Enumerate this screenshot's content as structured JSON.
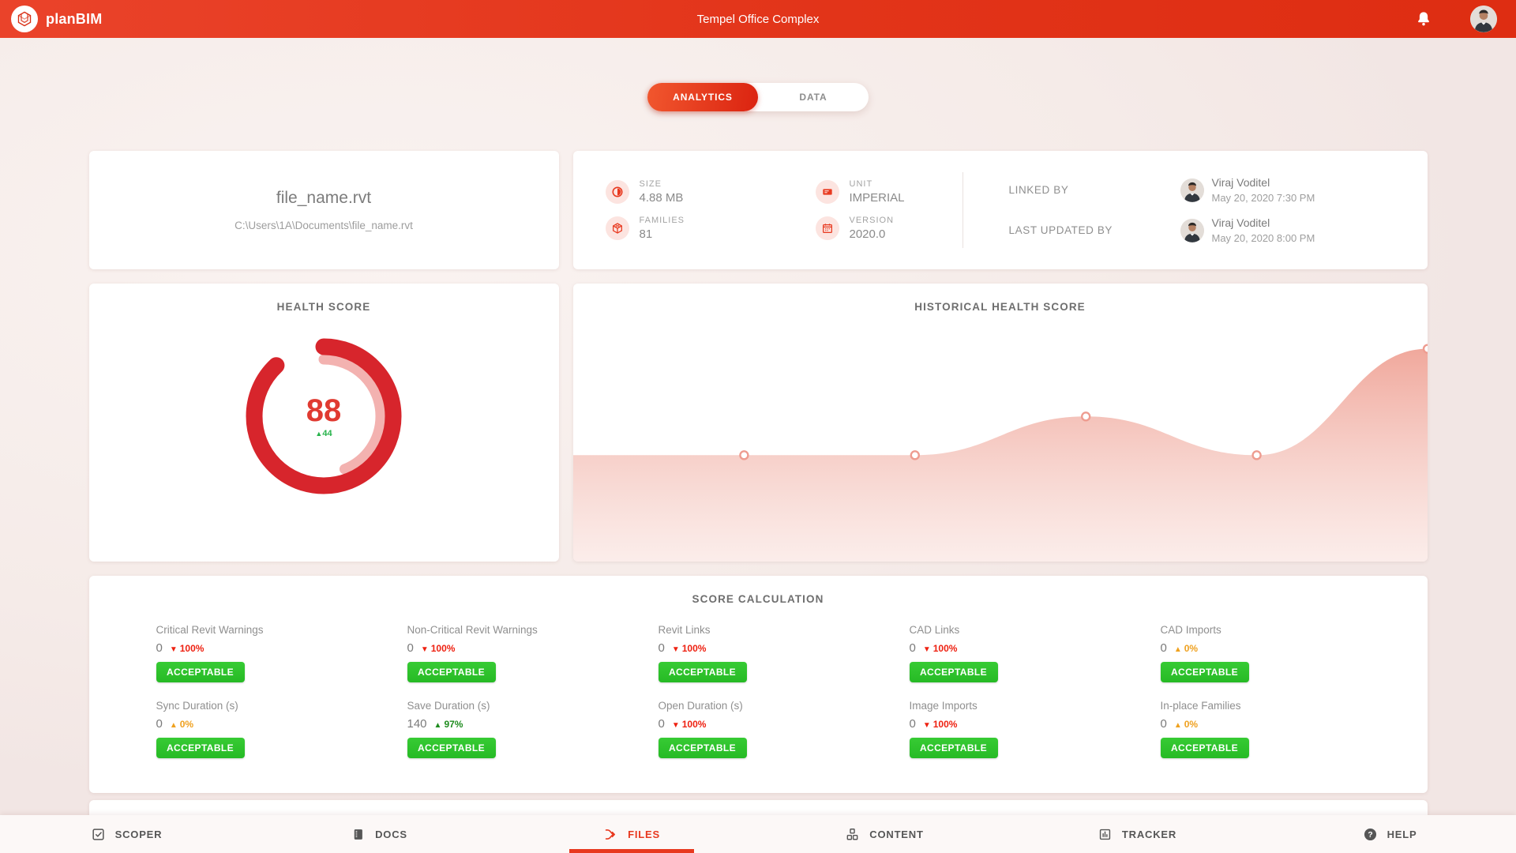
{
  "colors": {
    "accent": "#e8391f",
    "donut_red": "#d7252c",
    "donut_pink": "#f3b2b0",
    "score_red": "#e03a31",
    "green": "#2bc12b",
    "green_dark": "#1f8c1f",
    "orange": "#efa11f",
    "neg_red": "#ee2111",
    "chart_fill_top": "#efa093",
    "chart_fill_bottom": "#f8ded9",
    "chart_marker_ring": "#ee9c90"
  },
  "header": {
    "app_name": "planBIM",
    "project_title": "Tempel Office Complex"
  },
  "tabs": {
    "analytics": "ANALYTICS",
    "data": "DATA"
  },
  "file_card": {
    "name": "file_name.rvt",
    "path": "C:\\Users\\1A\\Documents\\file_name.rvt"
  },
  "meta_card": {
    "items": [
      {
        "label": "SIZE",
        "value": "4.88 MB",
        "icon": "size-icon"
      },
      {
        "label": "UNIT",
        "value": "IMPERIAL",
        "icon": "unit-icon"
      },
      {
        "label": "FAMILIES",
        "value": "81",
        "icon": "families-icon"
      },
      {
        "label": "VERSION",
        "value": "2020.0",
        "icon": "version-icon"
      }
    ],
    "linked_by": {
      "label": "LINKED BY",
      "user": "Viraj Voditel",
      "datetime": "May 20, 2020 7:30 PM"
    },
    "last_updated_by": {
      "label": "LAST UPDATED BY",
      "user": "Viraj Voditel",
      "datetime": "May 20, 2020 8:00 PM"
    }
  },
  "health_score": {
    "title": "HEALTH SCORE",
    "score": "88",
    "delta_arrow": "▲",
    "delta": "44"
  },
  "historical": {
    "title": "HISTORICAL HEALTH SCORE"
  },
  "chart_data": [
    {
      "type": "donut",
      "title": "HEALTH SCORE",
      "value": 88,
      "previous_value": 44,
      "max": 100,
      "delta": 44
    },
    {
      "type": "area",
      "title": "HISTORICAL HEALTH SCORE",
      "x": [
        1,
        2,
        3,
        4,
        5,
        6
      ],
      "values": [
        44,
        44,
        44,
        60,
        44,
        88
      ],
      "ylim": [
        0,
        115
      ],
      "grid": false,
      "legend": false
    }
  ],
  "score_calculation": {
    "title": "SCORE CALCULATION",
    "metrics": [
      {
        "label": "Critical Revit Warnings",
        "value": "0",
        "arrow": "▼",
        "direction": "down",
        "change": "100%",
        "trend": "red",
        "status": "ACCEPTABLE"
      },
      {
        "label": "Non-Critical Revit Warnings",
        "value": "0",
        "arrow": "▼",
        "direction": "down",
        "change": "100%",
        "trend": "red",
        "status": "ACCEPTABLE"
      },
      {
        "label": "Revit Links",
        "value": "0",
        "arrow": "▼",
        "direction": "down",
        "change": "100%",
        "trend": "red",
        "status": "ACCEPTABLE"
      },
      {
        "label": "CAD Links",
        "value": "0",
        "arrow": "▼",
        "direction": "down",
        "change": "100%",
        "trend": "red",
        "status": "ACCEPTABLE"
      },
      {
        "label": "CAD Imports",
        "value": "0",
        "arrow": "▲",
        "direction": "up",
        "change": "0%",
        "trend": "orange",
        "status": "ACCEPTABLE"
      },
      {
        "label": "Sync Duration (s)",
        "value": "0",
        "arrow": "▲",
        "direction": "up",
        "change": "0%",
        "trend": "orange",
        "status": "ACCEPTABLE"
      },
      {
        "label": "Save Duration (s)",
        "value": "140",
        "arrow": "▲",
        "direction": "up",
        "change": "97%",
        "trend": "green",
        "status": "ACCEPTABLE"
      },
      {
        "label": "Open Duration (s)",
        "value": "0",
        "arrow": "▼",
        "direction": "down",
        "change": "100%",
        "trend": "red",
        "status": "ACCEPTABLE"
      },
      {
        "label": "Image Imports",
        "value": "0",
        "arrow": "▼",
        "direction": "down",
        "change": "100%",
        "trend": "red",
        "status": "ACCEPTABLE"
      },
      {
        "label": "In-place Families",
        "value": "0",
        "arrow": "▲",
        "direction": "up",
        "change": "0%",
        "trend": "orange",
        "status": "ACCEPTABLE"
      }
    ]
  },
  "bottom_nav": {
    "items": [
      {
        "label": "SCOPER",
        "icon": "scoper-icon",
        "active": false
      },
      {
        "label": "DOCS",
        "icon": "docs-icon",
        "active": false
      },
      {
        "label": "FILES",
        "icon": "files-icon",
        "active": true
      },
      {
        "label": "CONTENT",
        "icon": "content-icon",
        "active": false
      },
      {
        "label": "TRACKER",
        "icon": "tracker-icon",
        "active": false
      },
      {
        "label": "HELP",
        "icon": "help-icon",
        "active": false
      }
    ]
  }
}
